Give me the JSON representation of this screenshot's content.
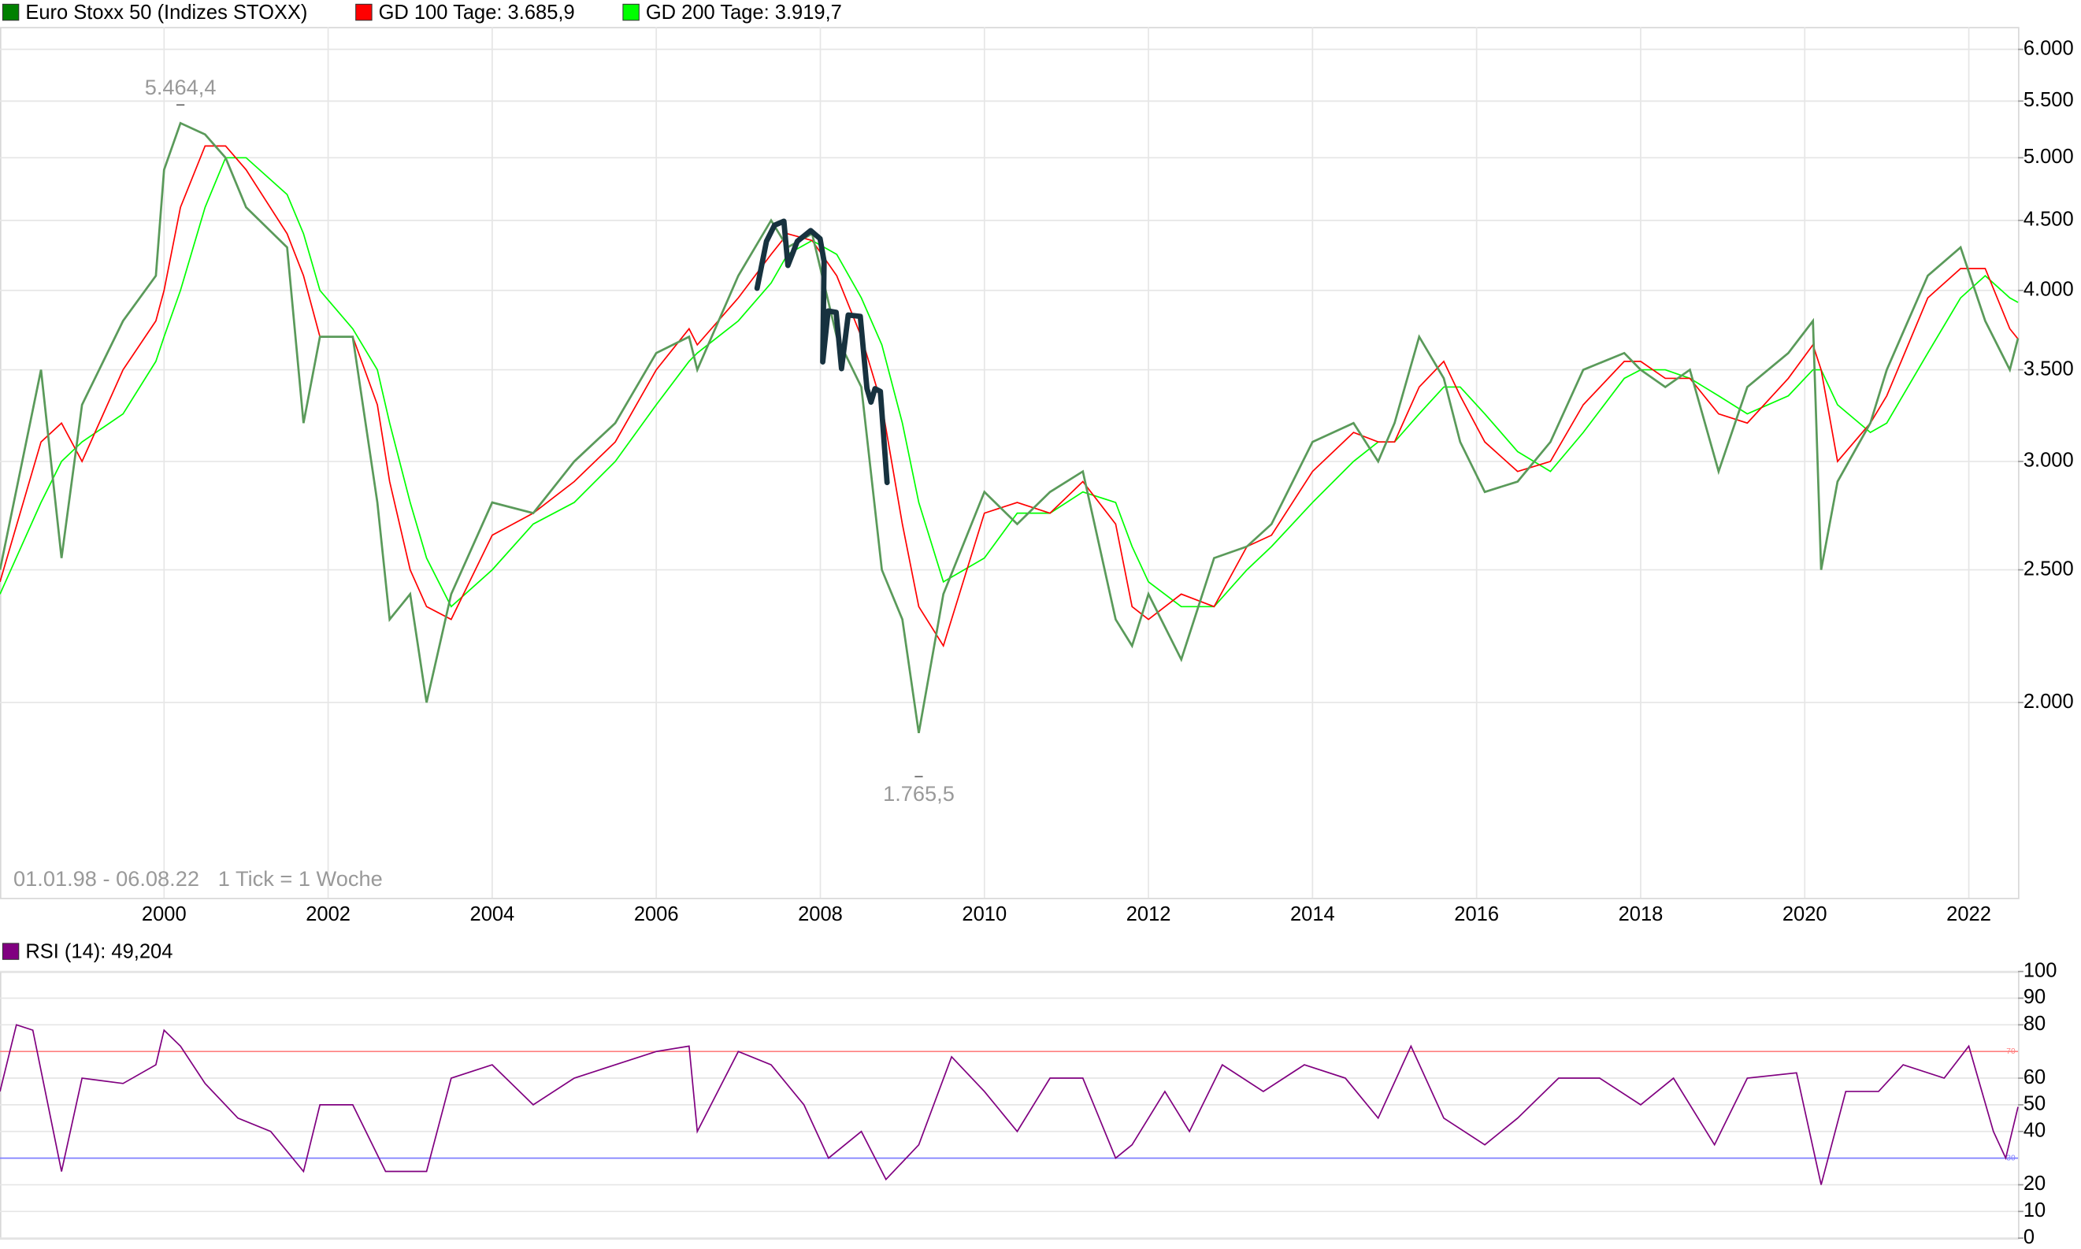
{
  "chart_data": [
    {
      "type": "line",
      "log_scale": true,
      "grid": true,
      "xlim": [
        1998,
        2022.6
      ],
      "ylim": [
        1440,
        6230
      ],
      "xticks": [
        2000,
        2002,
        2004,
        2006,
        2008,
        2010,
        2012,
        2014,
        2016,
        2018,
        2020,
        2022
      ],
      "yticks": [
        {
          "value": 2000,
          "label": "2.000"
        },
        {
          "value": 2500,
          "label": "2.500"
        },
        {
          "value": 3000,
          "label": "3.000"
        },
        {
          "value": 3500,
          "label": "3.500"
        },
        {
          "value": 4000,
          "label": "4.000"
        },
        {
          "value": 4500,
          "label": "4.500"
        },
        {
          "value": 5000,
          "label": "5.000"
        },
        {
          "value": 5500,
          "label": "5.500"
        },
        {
          "value": 6000,
          "label": "6.000"
        }
      ],
      "annotations": [
        {
          "label": "5.464,4",
          "value": 5464.4,
          "x": 2000.2
        },
        {
          "label": "1.765,5",
          "value": 1765.5,
          "x": 2009.2
        }
      ],
      "footnotes": [
        "01.01.98 - 06.08.22",
        "1 Tick = 1 Woche"
      ],
      "x": [
        1998.0,
        1998.5,
        1998.75,
        1999.0,
        1999.5,
        1999.9,
        2000.0,
        2000.2,
        2000.5,
        2000.75,
        2001.0,
        2001.5,
        2001.7,
        2001.9,
        2002.3,
        2002.6,
        2002.75,
        2003.0,
        2003.2,
        2003.5,
        2004.0,
        2004.5,
        2005.0,
        2005.5,
        2006.0,
        2006.4,
        2006.5,
        2007.0,
        2007.4,
        2007.6,
        2007.9,
        2008.2,
        2008.5,
        2008.75,
        2009.0,
        2009.2,
        2009.5,
        2010.0,
        2010.4,
        2010.8,
        2011.2,
        2011.6,
        2011.8,
        2012.0,
        2012.4,
        2012.8,
        2013.2,
        2013.5,
        2014.0,
        2014.5,
        2014.8,
        2015.0,
        2015.3,
        2015.6,
        2015.8,
        2016.1,
        2016.5,
        2016.9,
        2017.3,
        2017.8,
        2018.0,
        2018.3,
        2018.6,
        2018.95,
        2019.3,
        2019.8,
        2020.1,
        2020.2,
        2020.4,
        2020.8,
        2021.0,
        2021.5,
        2021.9,
        2022.2,
        2022.5,
        2022.6
      ],
      "series": [
        {
          "name": "Euro Stoxx 50 (Indizes STOXX)",
          "color": "#008000",
          "line_color": "#5a9a5a",
          "values": [
            2500,
            3500,
            2550,
            3300,
            3800,
            4100,
            4900,
            5300,
            5200,
            5000,
            4600,
            4300,
            3200,
            3700,
            3700,
            2800,
            2300,
            2400,
            2000,
            2400,
            2800,
            2750,
            3000,
            3200,
            3600,
            3700,
            3500,
            4100,
            4500,
            4300,
            4400,
            3700,
            3400,
            2500,
            2300,
            1900,
            2400,
            2850,
            2700,
            2850,
            2950,
            2300,
            2200,
            2400,
            2150,
            2550,
            2600,
            2700,
            3100,
            3200,
            3000,
            3200,
            3700,
            3450,
            3100,
            2850,
            2900,
            3100,
            3500,
            3600,
            3500,
            3400,
            3500,
            2950,
            3400,
            3600,
            3800,
            2500,
            2900,
            3200,
            3500,
            4100,
            4300,
            3800,
            3500,
            3690
          ]
        },
        {
          "name": "GD 100 Tage: 3.685,9",
          "color": "#ff0000",
          "values": [
            2450,
            3100,
            3200,
            3000,
            3500,
            3800,
            4000,
            4600,
            5100,
            5100,
            4900,
            4400,
            4100,
            3700,
            3700,
            3300,
            2900,
            2500,
            2350,
            2300,
            2650,
            2750,
            2900,
            3100,
            3500,
            3750,
            3650,
            3950,
            4250,
            4400,
            4350,
            4100,
            3700,
            3300,
            2700,
            2350,
            2200,
            2750,
            2800,
            2750,
            2900,
            2700,
            2350,
            2300,
            2400,
            2350,
            2600,
            2650,
            2950,
            3150,
            3100,
            3100,
            3400,
            3550,
            3350,
            3100,
            2950,
            3000,
            3300,
            3550,
            3550,
            3450,
            3450,
            3250,
            3200,
            3450,
            3650,
            3500,
            3000,
            3200,
            3350,
            3950,
            4150,
            4150,
            3750,
            3686
          ]
        },
        {
          "name": "GD 200 Tage: 3.919,7",
          "color": "#00ff00",
          "values": [
            2400,
            2800,
            3000,
            3100,
            3250,
            3550,
            3700,
            4000,
            4600,
            5000,
            5000,
            4700,
            4400,
            4000,
            3750,
            3500,
            3200,
            2800,
            2550,
            2350,
            2500,
            2700,
            2800,
            3000,
            3300,
            3550,
            3600,
            3800,
            4050,
            4250,
            4350,
            4250,
            3950,
            3650,
            3200,
            2800,
            2450,
            2550,
            2750,
            2750,
            2850,
            2800,
            2600,
            2450,
            2350,
            2350,
            2500,
            2600,
            2800,
            3000,
            3100,
            3100,
            3250,
            3400,
            3400,
            3250,
            3050,
            2950,
            3150,
            3450,
            3500,
            3500,
            3450,
            3350,
            3250,
            3350,
            3500,
            3500,
            3300,
            3150,
            3200,
            3600,
            3950,
            4100,
            3950,
            3920
          ]
        }
      ]
    },
    {
      "type": "line",
      "title": "RSI (14): 49,204",
      "xlim": [
        1998,
        2022.6
      ],
      "ylim": [
        0,
        100
      ],
      "yticks": [
        0,
        10,
        20,
        40,
        50,
        60,
        80,
        90,
        100
      ],
      "hlines": [
        {
          "value": 70,
          "color": "#ff8080"
        },
        {
          "value": 30,
          "color": "#8080ff"
        }
      ],
      "x": [
        1998.0,
        1998.2,
        1998.4,
        1998.75,
        1999.0,
        1999.5,
        1999.9,
        2000.0,
        2000.2,
        2000.5,
        2000.9,
        2001.3,
        2001.7,
        2001.9,
        2002.3,
        2002.7,
        2003.2,
        2003.5,
        2004.0,
        2004.5,
        2005.0,
        2005.5,
        2006.0,
        2006.4,
        2006.5,
        2007.0,
        2007.4,
        2007.8,
        2008.1,
        2008.5,
        2008.8,
        2009.2,
        2009.6,
        2010.0,
        2010.4,
        2010.8,
        2011.2,
        2011.6,
        2011.8,
        2012.2,
        2012.5,
        2012.9,
        2013.4,
        2013.9,
        2014.4,
        2014.8,
        2015.2,
        2015.6,
        2016.1,
        2016.5,
        2017.0,
        2017.5,
        2018.0,
        2018.4,
        2018.9,
        2019.3,
        2019.9,
        2020.2,
        2020.5,
        2020.9,
        2021.2,
        2021.7,
        2022.0,
        2022.3,
        2022.45,
        2022.6
      ],
      "series": [
        {
          "color": "#800080",
          "values": [
            55,
            80,
            78,
            25,
            60,
            58,
            65,
            78,
            72,
            58,
            45,
            40,
            25,
            50,
            50,
            25,
            25,
            60,
            65,
            50,
            60,
            65,
            70,
            72,
            40,
            70,
            65,
            50,
            30,
            40,
            22,
            35,
            68,
            55,
            40,
            60,
            60,
            30,
            35,
            55,
            40,
            65,
            55,
            65,
            60,
            45,
            72,
            45,
            35,
            45,
            60,
            60,
            50,
            60,
            35,
            60,
            62,
            20,
            55,
            55,
            65,
            60,
            72,
            40,
            30,
            49.2
          ]
        }
      ]
    }
  ]
}
